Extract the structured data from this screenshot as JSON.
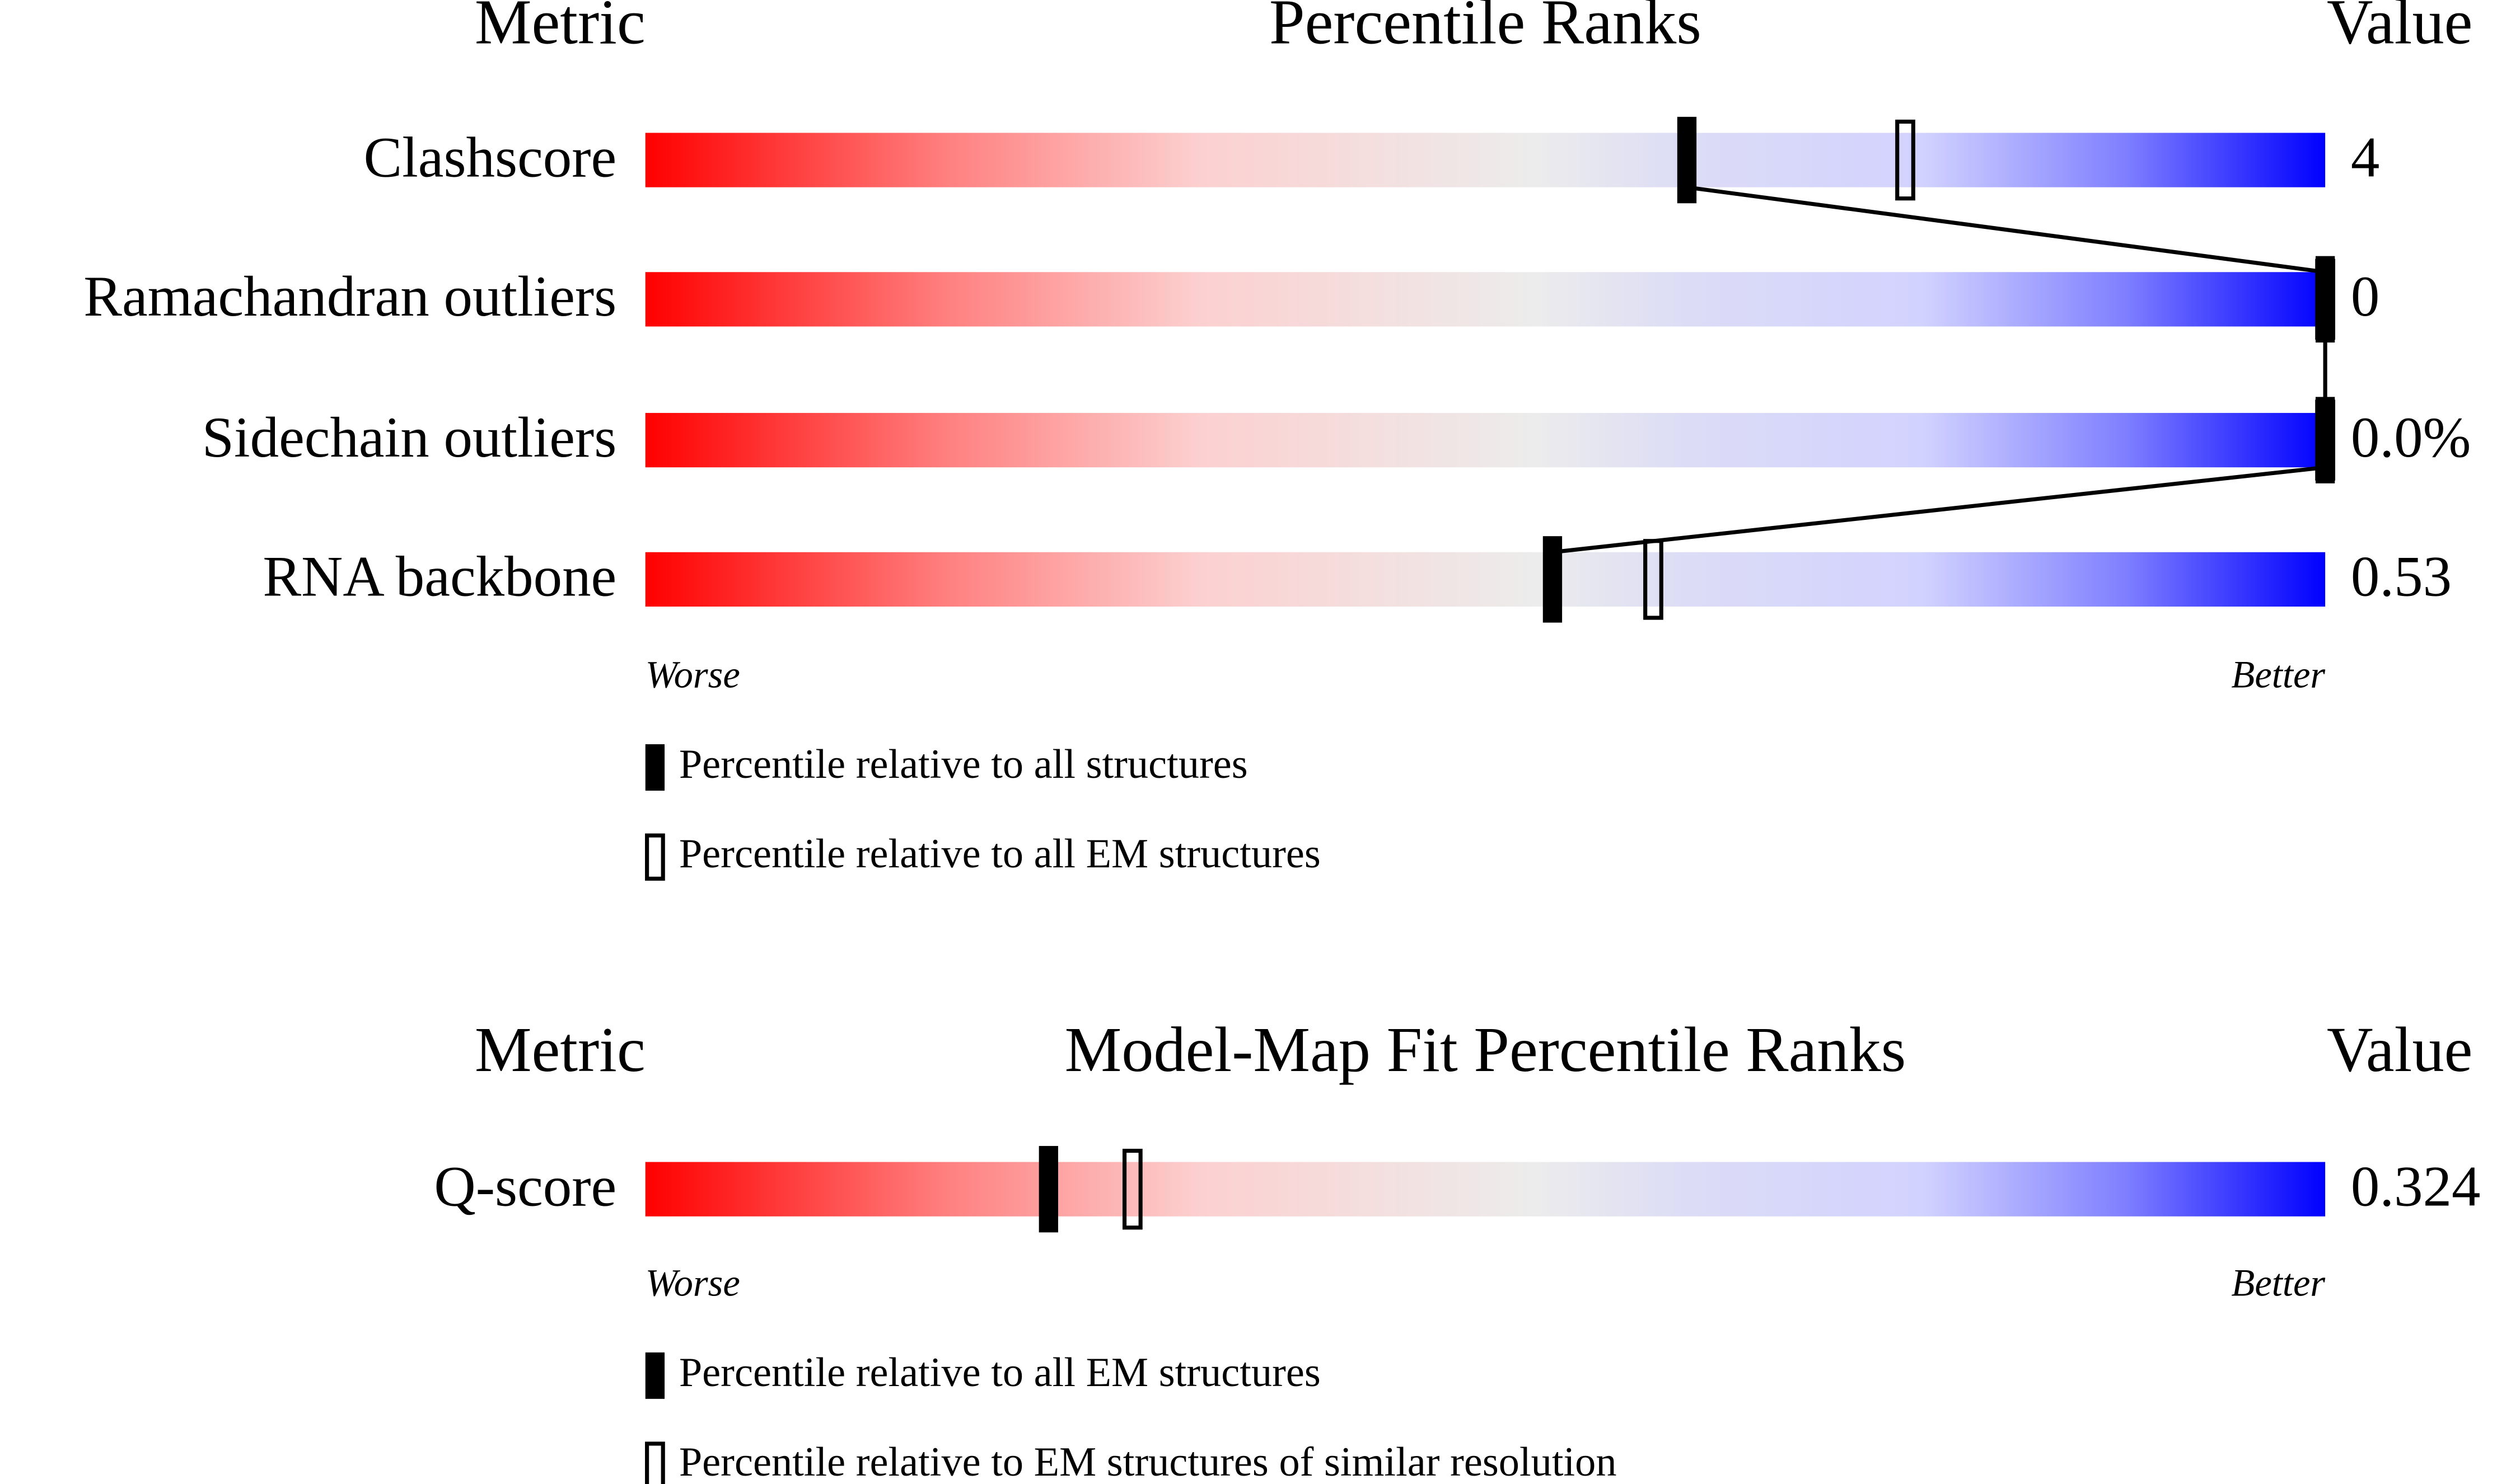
{
  "chart_data": [
    {
      "type": "percentile",
      "metric_header": "Metric",
      "title": "Percentile Ranks",
      "value_header": "Value",
      "categories": [
        "Clashscore",
        "Ramachandran outliers",
        "Sidechain outliers",
        "RNA backbone"
      ],
      "values": [
        4,
        0,
        0,
        0.53
      ],
      "value_labels": [
        "4",
        "0",
        "0.0%",
        "0.53"
      ],
      "xlim": [
        0,
        100
      ],
      "x_low_label": "Worse",
      "x_high_label": "Better",
      "series": [
        {
          "name": "Percentile relative to all structures",
          "values": [
            62,
            100,
            100,
            54
          ]
        },
        {
          "name": "Percentile relative to all EM structures",
          "values": [
            75,
            100,
            100,
            60
          ]
        }
      ]
    },
    {
      "type": "percentile",
      "metric_header": "Metric",
      "title": "Model-Map Fit Percentile Ranks",
      "value_header": "Value",
      "categories": [
        "Q-score"
      ],
      "values": [
        0.324
      ],
      "value_labels": [
        "0.324"
      ],
      "xlim": [
        0,
        100
      ],
      "x_low_label": "Worse",
      "x_high_label": "Better",
      "series": [
        {
          "name": "Percentile relative to all EM structures",
          "values": [
            24
          ]
        },
        {
          "name": "Percentile relative to EM structures of similar resolution",
          "values": [
            29
          ]
        }
      ]
    }
  ]
}
